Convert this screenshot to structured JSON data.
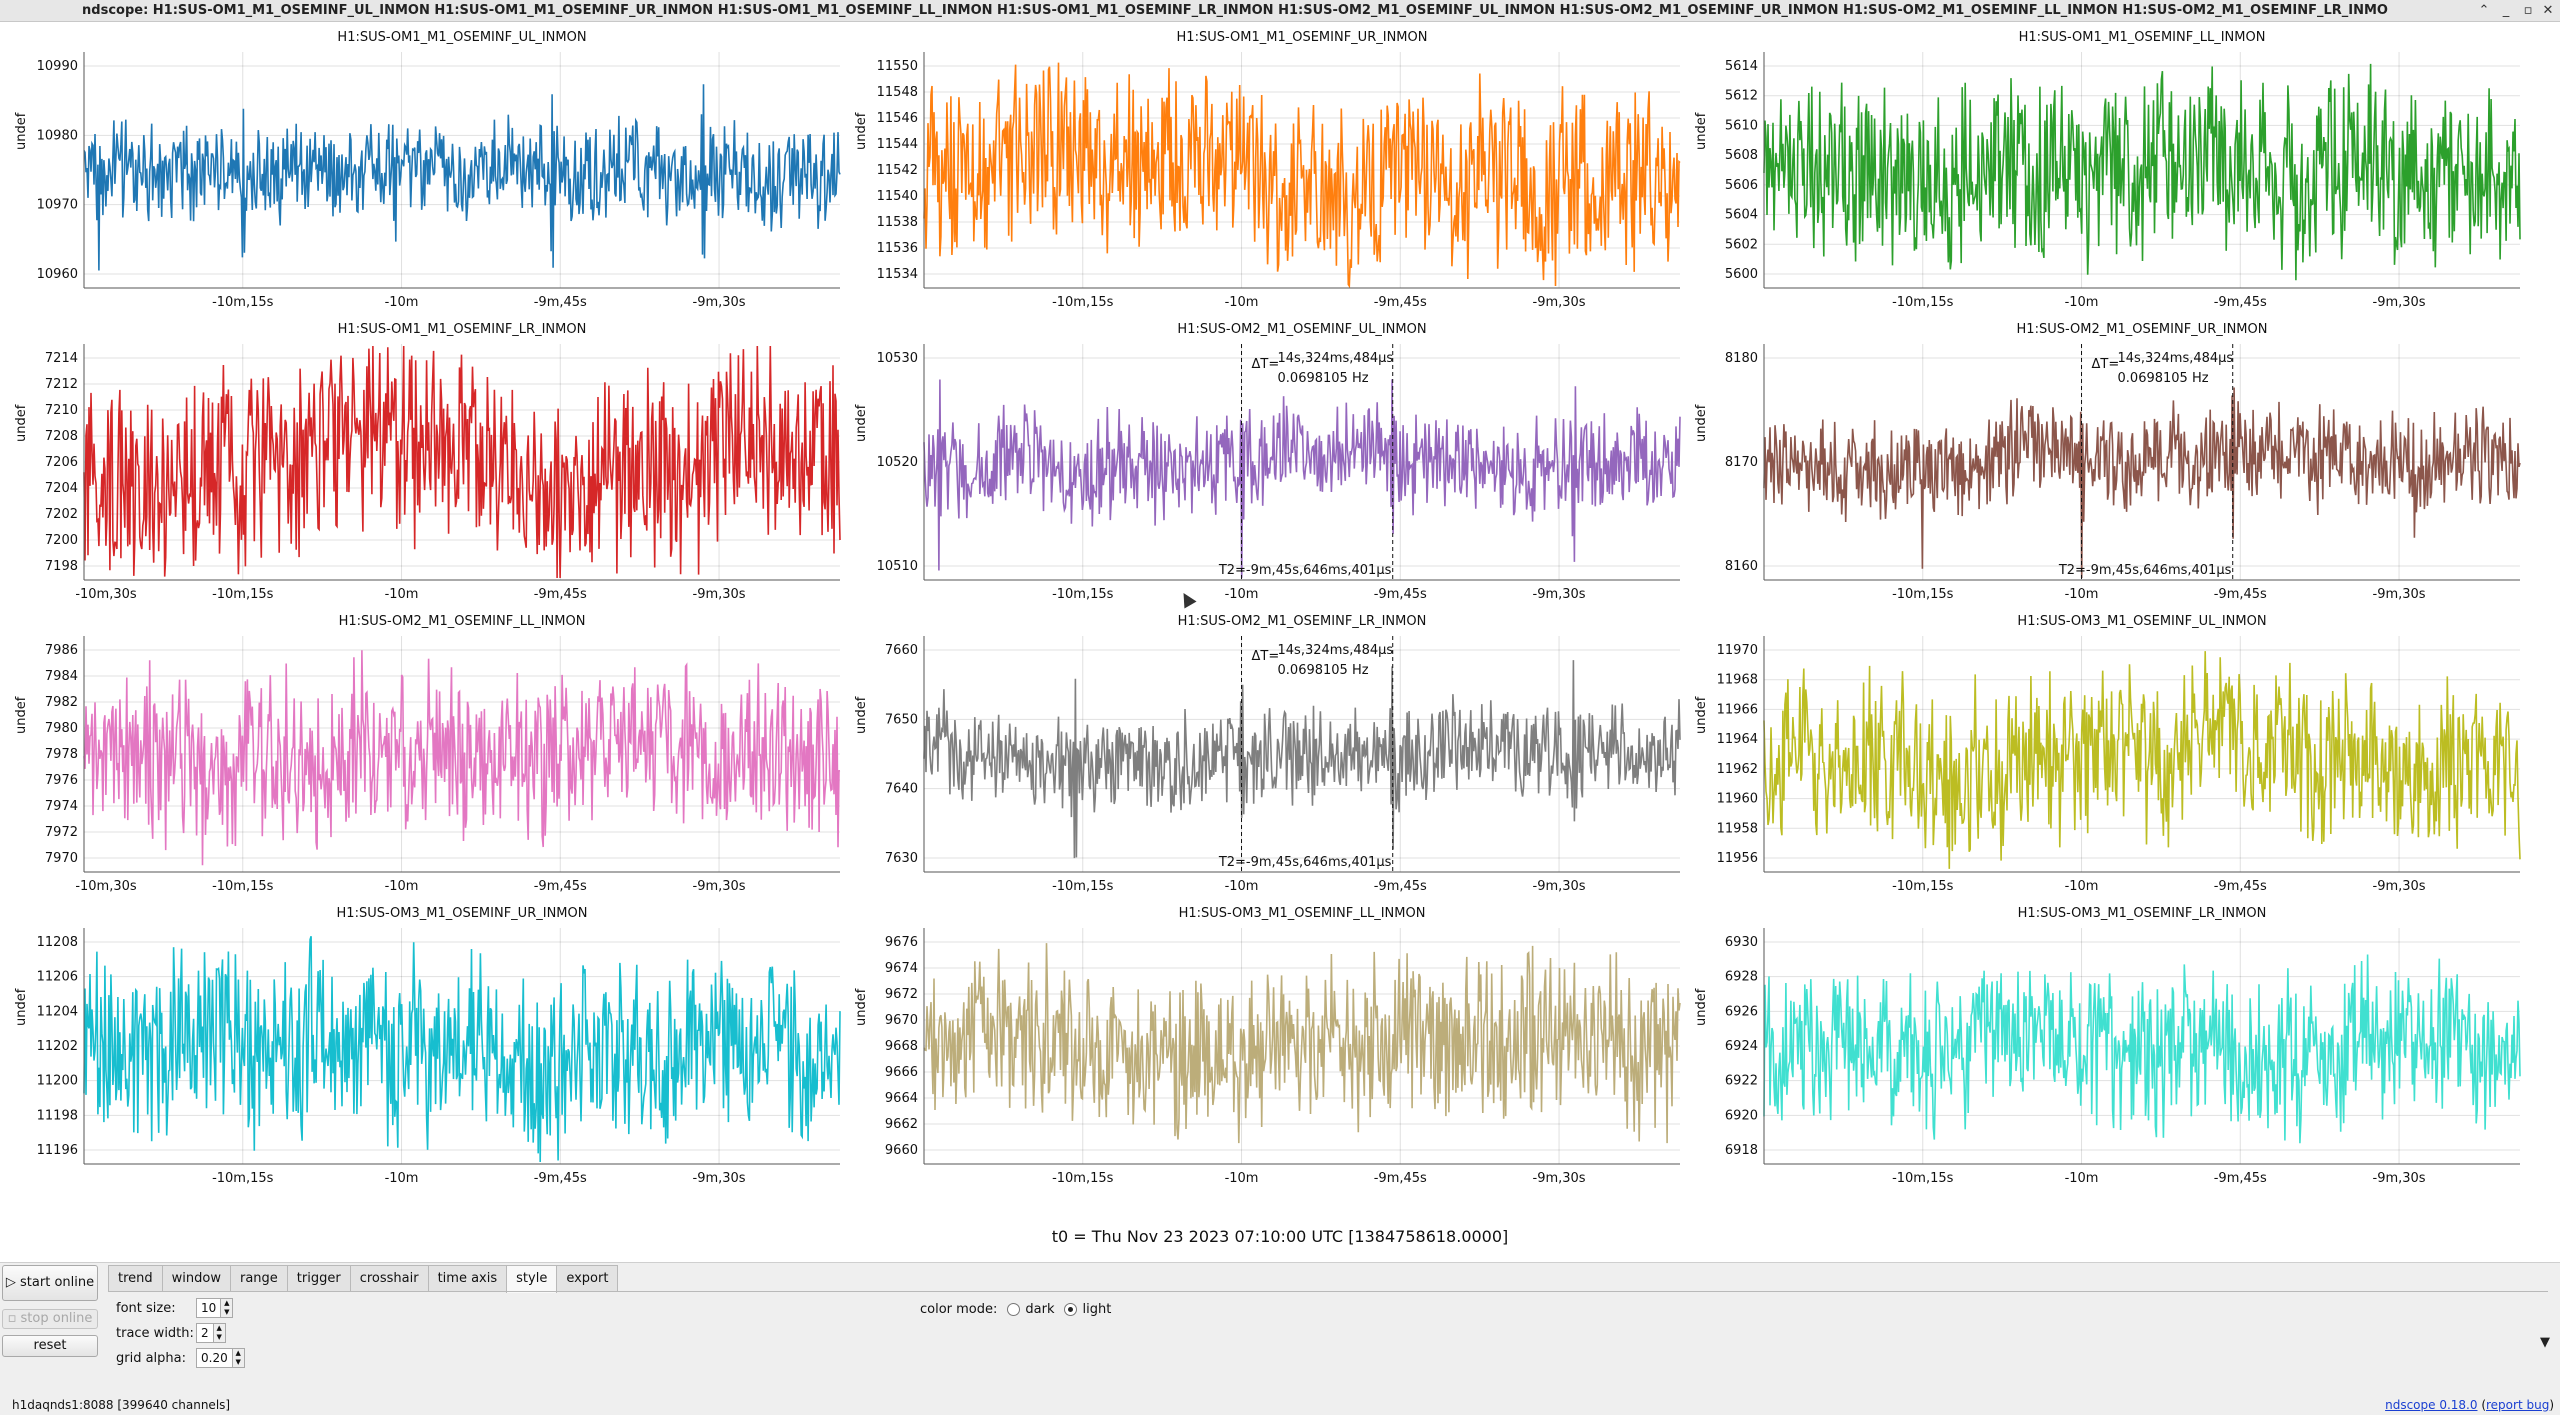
{
  "window": {
    "title": "ndscope: H1:SUS-OM1_M1_OSEMINF_UL_INMON H1:SUS-OM1_M1_OSEMINF_UR_INMON H1:SUS-OM1_M1_OSEMINF_LL_INMON H1:SUS-OM1_M1_OSEMINF_LR_INMON H1:SUS-OM2_M1_OSEMINF_UL_INMON H1:SUS-OM2_M1_OSEMINF_UR_INMON H1:SUS-OM2_M1_OSEMINF_LL_INMON H1:SUS-OM2_M1_OSEMINF_LR_INMO",
    "controls": [
      "⌃",
      "_",
      "▫",
      "✕"
    ]
  },
  "x_tick_labels": [
    "-10m,30s",
    "-10m,15s",
    "-10m",
    "-9m,45s",
    "-9m,30s"
  ],
  "y_axis_label": "undef",
  "plots": [
    {
      "title": "H1:SUS-OM1_M1_OSEMINF_UL_INMON",
      "color": "#1f77b4",
      "yticks": [
        "10990",
        "10980",
        "10970",
        "10960"
      ],
      "first_xtick_visible": false,
      "dips": [
        0.02,
        0.21,
        0.41,
        0.62,
        0.82
      ],
      "noise": 0.3
    },
    {
      "title": "H1:SUS-OM1_M1_OSEMINF_UR_INMON",
      "color": "#ff7f0e",
      "yticks": [
        "11550",
        "11548",
        "11546",
        "11544",
        "11542",
        "11540",
        "11538",
        "11536",
        "11534"
      ],
      "first_xtick_visible": false,
      "dips": [],
      "noise": 0.55
    },
    {
      "title": "H1:SUS-OM1_M1_OSEMINF_LL_INMON",
      "color": "#2ca02c",
      "yticks": [
        "5614",
        "5612",
        "5610",
        "5608",
        "5606",
        "5604",
        "5602",
        "5600"
      ],
      "first_xtick_visible": false,
      "dips": [],
      "noise": 0.55
    },
    {
      "title": "H1:SUS-OM1_M1_OSEMINF_LR_INMON",
      "color": "#d62728",
      "yticks": [
        "7214",
        "7212",
        "7210",
        "7208",
        "7206",
        "7204",
        "7202",
        "7200",
        "7198"
      ],
      "first_xtick_visible": true,
      "dips": [],
      "noise": 0.6
    },
    {
      "title": "H1:SUS-OM2_M1_OSEMINF_UL_INMON",
      "color": "#9467bd",
      "yticks": [
        "10530",
        "10520",
        "10510"
      ],
      "first_xtick_visible": false,
      "dips": [
        0.02,
        0.42,
        0.62,
        0.86
      ],
      "noise": 0.3,
      "cursor": {
        "dt": "14s,324ms,484μs",
        "freq": "0.0698105 Hz",
        "t2": "T2=-9m,45s,646ms,401μs",
        "delta_label": "ΔT="
      }
    },
    {
      "title": "H1:SUS-OM2_M1_OSEMINF_UR_INMON",
      "color": "#8c564b",
      "yticks": [
        "8180",
        "8170",
        "8160"
      ],
      "first_xtick_visible": false,
      "dips": [
        0.21,
        0.42,
        0.62,
        0.86
      ],
      "noise": 0.3,
      "cursor": {
        "dt": "14s,324ms,484μs",
        "freq": "0.0698105 Hz",
        "t2": "T2=-9m,45s,646ms,401μs",
        "delta_label": "ΔT="
      }
    },
    {
      "title": "H1:SUS-OM2_M1_OSEMINF_LL_INMON",
      "color": "#e377c2",
      "yticks": [
        "7986",
        "7984",
        "7982",
        "7980",
        "7978",
        "7976",
        "7974",
        "7972",
        "7970"
      ],
      "first_xtick_visible": true,
      "dips": [],
      "noise": 0.5
    },
    {
      "title": "H1:SUS-OM2_M1_OSEMINF_LR_INMON",
      "color": "#7f7f7f",
      "yticks": [
        "7660",
        "7650",
        "7640",
        "7630"
      ],
      "first_xtick_visible": false,
      "dips": [
        0.2,
        0.42,
        0.62,
        0.86
      ],
      "noise": 0.3,
      "cursor": {
        "dt": "14s,324ms,484μs",
        "freq": "0.0698105 Hz",
        "t2": "T2=-9m,45s,646ms,401μs",
        "delta_label": "ΔT="
      }
    },
    {
      "title": "H1:SUS-OM3_M1_OSEMINF_UL_INMON",
      "color": "#bcbd22",
      "yticks": [
        "11970",
        "11968",
        "11966",
        "11964",
        "11962",
        "11960",
        "11958",
        "11956"
      ],
      "first_xtick_visible": false,
      "dips": [],
      "noise": 0.5
    },
    {
      "title": "H1:SUS-OM3_M1_OSEMINF_UR_INMON",
      "color": "#17becf",
      "yticks": [
        "11208",
        "11206",
        "11204",
        "11202",
        "11200",
        "11198",
        "11196"
      ],
      "first_xtick_visible": false,
      "dips": [],
      "noise": 0.55
    },
    {
      "title": "H1:SUS-OM3_M1_OSEMINF_LL_INMON",
      "color": "#bcad7a",
      "yticks": [
        "9676",
        "9674",
        "9672",
        "9670",
        "9668",
        "9666",
        "9664",
        "9662",
        "9660"
      ],
      "first_xtick_visible": false,
      "dips": [],
      "noise": 0.5
    },
    {
      "title": "H1:SUS-OM3_M1_OSEMINF_LR_INMON",
      "color": "#40e0d0",
      "yticks": [
        "6930",
        "6928",
        "6926",
        "6924",
        "6922",
        "6920",
        "6918"
      ],
      "first_xtick_visible": false,
      "dips": [],
      "noise": 0.45
    }
  ],
  "t0_label": "t0 = Thu Nov 23 2023 07:10:00 UTC [1384758618.0000]",
  "controls": {
    "start_online": "start online",
    "stop_online": "stop online",
    "reset": "reset",
    "tabs": [
      "trend",
      "window",
      "range",
      "trigger",
      "crosshair",
      "time axis",
      "style",
      "export"
    ],
    "active_tab": "style",
    "font_size_label": "font size:",
    "font_size_value": "10",
    "trace_width_label": "trace width:",
    "trace_width_value": "2",
    "grid_alpha_label": "grid alpha:",
    "grid_alpha_value": "0.20",
    "color_mode_label": "color mode:",
    "color_mode_dark": "dark",
    "color_mode_light": "light",
    "color_mode_selected": "light"
  },
  "status": {
    "server": "h1daqnds1:8088",
    "channels": "[399640 channels]",
    "version_link": "ndscope 0.18.0",
    "report_bug": "report bug"
  }
}
